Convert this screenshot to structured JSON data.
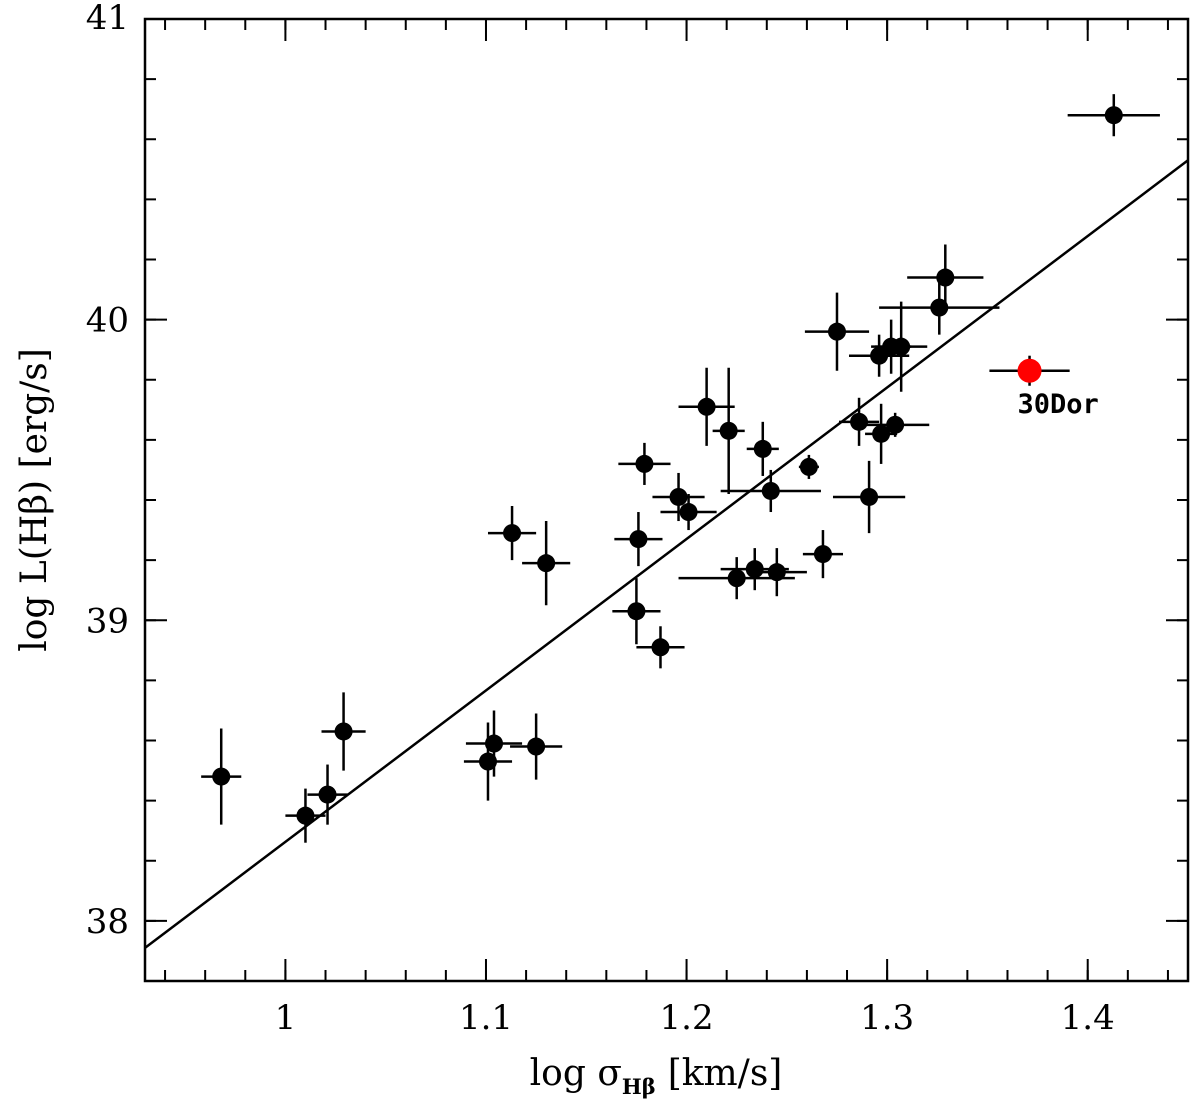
{
  "chart_data": {
    "type": "scatter",
    "title": "",
    "xlabel": {
      "prefix": "log σ",
      "subscript": "Hβ",
      "suffix": "[km/s]"
    },
    "ylabel": "log L(Hβ) [erg/s]",
    "xlim": [
      0.93,
      1.45
    ],
    "ylim": [
      37.8,
      41.0
    ],
    "xticks": [
      {
        "value": 1.0,
        "label": "1"
      },
      {
        "value": 1.1,
        "label": "1.1"
      },
      {
        "value": 1.2,
        "label": "1.2"
      },
      {
        "value": 1.3,
        "label": "1.3"
      },
      {
        "value": 1.4,
        "label": "1.4"
      }
    ],
    "yticks": [
      {
        "value": 38,
        "label": "38"
      },
      {
        "value": 39,
        "label": "39"
      },
      {
        "value": 40,
        "label": "40"
      },
      {
        "value": 41,
        "label": "41"
      }
    ],
    "x_minor_step": 0.02,
    "y_minor_step": 0.2,
    "fit_line": {
      "x": [
        0.93,
        1.45
      ],
      "y": [
        37.91,
        40.53
      ]
    },
    "series": [
      {
        "name": "sample",
        "color": "#000000",
        "points": [
          {
            "x": 0.968,
            "y": 38.48,
            "xerr": 0.01,
            "yerr": 0.16
          },
          {
            "x": 1.01,
            "y": 38.35,
            "xerr": 0.01,
            "yerr": 0.09
          },
          {
            "x": 1.021,
            "y": 38.42,
            "xerr": 0.01,
            "yerr": 0.1
          },
          {
            "x": 1.029,
            "y": 38.63,
            "xerr": 0.011,
            "yerr": 0.13
          },
          {
            "x": 1.101,
            "y": 38.53,
            "xerr": 0.012,
            "yerr": 0.13
          },
          {
            "x": 1.104,
            "y": 38.59,
            "xerr": 0.014,
            "yerr": 0.11
          },
          {
            "x": 1.113,
            "y": 39.29,
            "xerr": 0.012,
            "yerr": 0.09
          },
          {
            "x": 1.125,
            "y": 38.58,
            "xerr": 0.013,
            "yerr": 0.11
          },
          {
            "x": 1.13,
            "y": 39.19,
            "xerr": 0.012,
            "yerr": 0.14
          },
          {
            "x": 1.175,
            "y": 39.03,
            "xerr": 0.012,
            "yerr": 0.11
          },
          {
            "x": 1.176,
            "y": 39.27,
            "xerr": 0.012,
            "yerr": 0.09
          },
          {
            "x": 1.179,
            "y": 39.52,
            "xerr": 0.013,
            "yerr": 0.07
          },
          {
            "x": 1.187,
            "y": 38.91,
            "xerr": 0.012,
            "yerr": 0.07
          },
          {
            "x": 1.196,
            "y": 39.41,
            "xerr": 0.013,
            "yerr": 0.08
          },
          {
            "x": 1.201,
            "y": 39.36,
            "xerr": 0.014,
            "yerr": 0.06
          },
          {
            "x": 1.21,
            "y": 39.71,
            "xerr": 0.014,
            "yerr": 0.13
          },
          {
            "x": 1.221,
            "y": 39.63,
            "xerr": 0.008,
            "yerr": 0.21
          },
          {
            "x": 1.225,
            "y": 39.14,
            "xerr": 0.029,
            "yerr": 0.07
          },
          {
            "x": 1.234,
            "y": 39.17,
            "xerr": 0.017,
            "yerr": 0.07
          },
          {
            "x": 1.238,
            "y": 39.57,
            "xerr": 0.008,
            "yerr": 0.09
          },
          {
            "x": 1.242,
            "y": 39.43,
            "xerr": 0.025,
            "yerr": 0.07
          },
          {
            "x": 1.245,
            "y": 39.16,
            "xerr": 0.015,
            "yerr": 0.08
          },
          {
            "x": 1.261,
            "y": 39.51,
            "xerr": 0.005,
            "yerr": 0.04
          },
          {
            "x": 1.268,
            "y": 39.22,
            "xerr": 0.01,
            "yerr": 0.08
          },
          {
            "x": 1.275,
            "y": 39.96,
            "xerr": 0.016,
            "yerr": 0.13
          },
          {
            "x": 1.286,
            "y": 39.66,
            "xerr": 0.01,
            "yerr": 0.08
          },
          {
            "x": 1.291,
            "y": 39.41,
            "xerr": 0.018,
            "yerr": 0.12
          },
          {
            "x": 1.296,
            "y": 39.88,
            "xerr": 0.015,
            "yerr": 0.07
          },
          {
            "x": 1.297,
            "y": 39.62,
            "xerr": 0.008,
            "yerr": 0.1
          },
          {
            "x": 1.302,
            "y": 39.91,
            "xerr": 0.01,
            "yerr": 0.09
          },
          {
            "x": 1.304,
            "y": 39.65,
            "xerr": 0.017,
            "yerr": 0.04
          },
          {
            "x": 1.307,
            "y": 39.91,
            "xerr": 0.013,
            "yerr": 0.15
          },
          {
            "x": 1.326,
            "y": 40.04,
            "xerr": 0.03,
            "yerr": 0.09
          },
          {
            "x": 1.329,
            "y": 40.14,
            "xerr": 0.019,
            "yerr": 0.11
          },
          {
            "x": 1.413,
            "y": 40.68,
            "xerr": 0.023,
            "yerr": 0.07
          }
        ]
      },
      {
        "name": "30Dor",
        "color": "#ff0000",
        "points": [
          {
            "x": 1.371,
            "y": 39.83,
            "xerr": 0.02,
            "yerr": 0.05
          }
        ]
      }
    ],
    "annotations": [
      {
        "text": "30Dor",
        "x": 1.365,
        "y": 39.69
      }
    ]
  }
}
